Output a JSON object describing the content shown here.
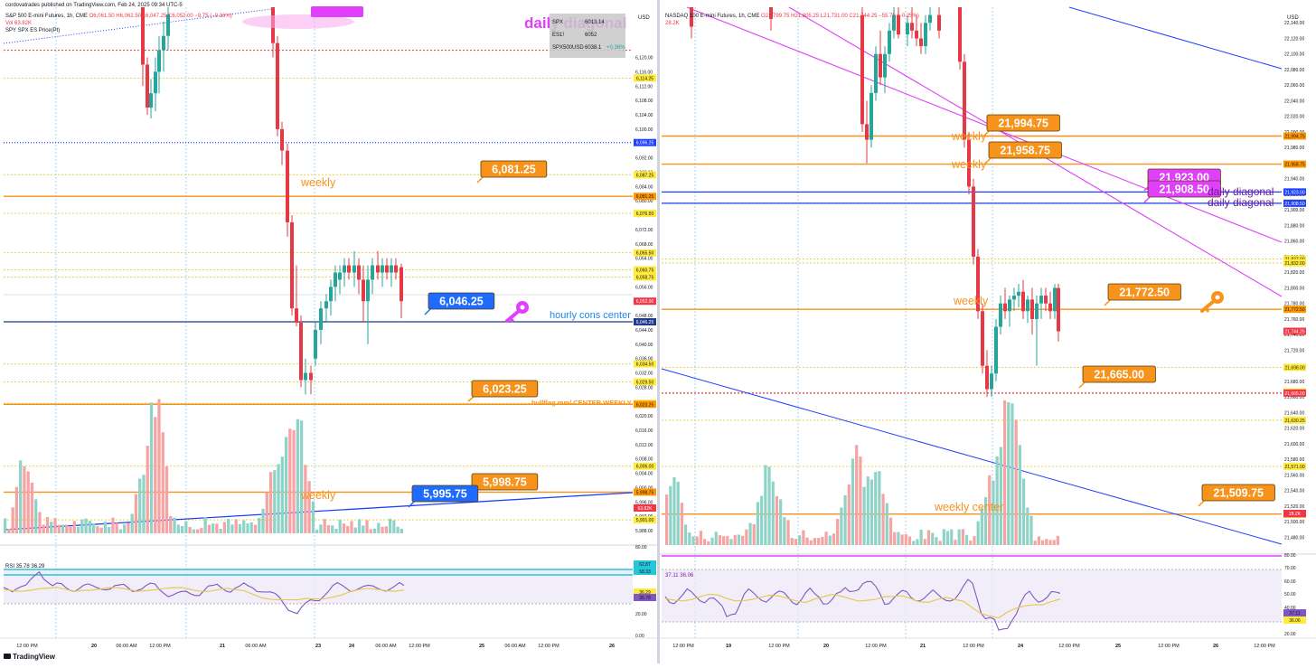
{
  "chart_data": [
    {
      "type": "candlestick",
      "title": "S&P 500 E-mini Futures, 1h, CME",
      "publisher": "cordovatrades published on TradingView.com, Feb 24, 2025 09:34 UTC-5",
      "ohlc_text": "O6,061.50 H6,062.50 L6,047.25 C6,052.00 −9.75 (−0.16%)",
      "vol_text": "Vol 63.82K",
      "overlay_text": "SPY SPX ES Price(Pt)",
      "currency": "USD",
      "table": [
        [
          "SPX",
          "6013.14",
          ""
        ],
        [
          "ES1!",
          "6052",
          ""
        ],
        [
          "SPX500USD",
          "6038.1",
          "+0.36%"
        ]
      ],
      "ylim": [
        5986,
        6134
      ],
      "y_ticks": [
        "6,120.00",
        "6,116.00",
        "6,112.00",
        "6,108.00",
        "6,104.00",
        "6,100.00",
        "6,096.00",
        "6,092.00",
        "6,088.00",
        "6,084.00",
        "6,080.00",
        "6,076.00",
        "6,072.00",
        "6,068.00",
        "6,064.00",
        "6,060.00",
        "6,056.00",
        "6,052.00",
        "6,048.00",
        "6,044.00",
        "6,040.00",
        "6,036.00",
        "6,032.00",
        "6,028.00",
        "6,024.00",
        "6,020.00",
        "6,016.00",
        "6,012.00",
        "6,008.00",
        "6,004.00",
        "6,000.00",
        "5,996.00",
        "5,992.00",
        "5,988.00"
      ],
      "x_ticks": [
        "12:00 PM",
        "20",
        "06:00 AM",
        "12:00 PM",
        "21",
        "06:00 AM",
        "23",
        "24",
        "06:00 AM",
        "12:00 PM",
        "25",
        "06:00 AM",
        "12:00 PM",
        "26"
      ],
      "price_tags": [
        {
          "value": "6,114.25",
          "color": "#ffeb3b"
        },
        {
          "value": "6,096.25",
          "color": "#1e40ff"
        },
        {
          "value": "6,087.25",
          "color": "#ffeb3b"
        },
        {
          "value": "6,081.25",
          "color": "#ff9800"
        },
        {
          "value": "6,076.50",
          "color": "#ffeb3b"
        },
        {
          "value": "6,065.50",
          "color": "#ffeb3b"
        },
        {
          "value": "6,060.75",
          "color": "#ffeb3b"
        },
        {
          "value": "6,058.75",
          "color": "#ffeb3b"
        },
        {
          "value": "6,052.00",
          "color": "#f23645"
        },
        {
          "value": "6,046.25",
          "color": "#1e3a8a"
        },
        {
          "value": "6,034.50",
          "color": "#ffeb3b"
        },
        {
          "value": "6,029.50",
          "color": "#ffeb3b"
        },
        {
          "value": "6,023.50",
          "color": "#ffeb3b"
        },
        {
          "value": "6,023.25",
          "color": "#ff9800"
        },
        {
          "value": "6,006.00",
          "color": "#ffeb3b"
        },
        {
          "value": "5,998.75",
          "color": "#ff9800"
        },
        {
          "value": "5,991.00",
          "color": "#ffeb3b"
        }
      ],
      "callouts": [
        {
          "text": "6,081.25",
          "color": "#f7931a"
        },
        {
          "text": "6,046.25",
          "color": "#1e6bff"
        },
        {
          "text": "6,023.25",
          "color": "#f7931a"
        },
        {
          "text": "5,998.75",
          "color": "#f7931a"
        },
        {
          "text": "5,995.75",
          "color": "#1e6bff"
        }
      ],
      "annotations": [
        "daily diagonal",
        "weekly",
        "weekly",
        "hourly cons center",
        "bullflag mm/ CENTER WEEKLY"
      ],
      "rsi": {
        "label": "RSI 35.78 36.29",
        "ticks": [
          "80.00",
          "20.00",
          "0.00"
        ],
        "tags": [
          "62.87",
          "58.33",
          "36.29",
          "35.78"
        ]
      }
    },
    {
      "type": "candlestick",
      "title": "NASDAQ 100 E-mini Futures, 1h, CME",
      "ohlc_text": "O21,799.75 H21,805.25 L21,731.00 C21,744.25 −55.75 (−0.25%)",
      "vol_text": "28.2K",
      "currency": "USD",
      "ylim": [
        21470,
        22160
      ],
      "y_ticks": [
        "22,140.00",
        "22,120.00",
        "22,100.00",
        "22,080.00",
        "22,060.00",
        "22,040.00",
        "22,020.00",
        "22,000.00",
        "21,980.00",
        "21,960.00",
        "21,940.00",
        "21,920.00",
        "21,900.00",
        "21,880.00",
        "21,860.00",
        "21,840.00",
        "21,820.00",
        "21,800.00",
        "21,780.00",
        "21,760.00",
        "21,740.00",
        "21,720.00",
        "21,700.00",
        "21,680.00",
        "21,660.00",
        "21,640.00",
        "21,620.00",
        "21,600.00",
        "21,580.00",
        "21,560.00",
        "21,540.00",
        "21,520.00",
        "21,500.00",
        "21,480.00"
      ],
      "x_ticks": [
        "12:00 PM",
        "19",
        "12:00 PM",
        "20",
        "12:00 PM",
        "21",
        "12:00 PM",
        "24",
        "12:00 PM",
        "25",
        "12:00 PM",
        "26",
        "12:00 PM"
      ],
      "price_tags": [
        {
          "value": "21,994.75",
          "color": "#ff9800"
        },
        {
          "value": "21,958.75",
          "color": "#ff9800"
        },
        {
          "value": "21,923.00",
          "color": "#1e40ff"
        },
        {
          "value": "21,909.00",
          "color": "#ffeb3b"
        },
        {
          "value": "21,908.50",
          "color": "#1e40ff"
        },
        {
          "value": "21,837.00",
          "color": "#ffeb3b"
        },
        {
          "value": "21,832.00",
          "color": "#ffeb3b"
        },
        {
          "value": "21,772.50",
          "color": "#ff9800"
        },
        {
          "value": "21,744.25",
          "color": "#f23645"
        },
        {
          "value": "21,698.00",
          "color": "#ffeb3b"
        },
        {
          "value": "21,666.50",
          "color": "#ffeb3b"
        },
        {
          "value": "21,665.00",
          "color": "#f23645"
        },
        {
          "value": "21,630.25",
          "color": "#ffeb3b"
        },
        {
          "value": "21,571.00",
          "color": "#ffeb3b"
        },
        {
          "value": "21,509.75",
          "color": "#ff9800"
        },
        {
          "value": "28.2K",
          "color": "#f23645"
        }
      ],
      "callouts": [
        {
          "text": "21,994.75",
          "color": "#f7931a"
        },
        {
          "text": "21,958.75",
          "color": "#f7931a"
        },
        {
          "text": "21,923.00",
          "color": "#e040fb"
        },
        {
          "text": "21,908.50",
          "color": "#e040fb"
        },
        {
          "text": "21,772.50",
          "color": "#f7931a"
        },
        {
          "text": "21,665.00",
          "color": "#f7931a"
        },
        {
          "text": "21,509.75",
          "color": "#f7931a"
        }
      ],
      "annotations": [
        "weekly",
        "weekly",
        "daily diagonal",
        "daily diagonal",
        "weekly",
        "weekly center"
      ],
      "rsi": {
        "label": "37.11 36.06",
        "ticks": [
          "80.00",
          "70.00",
          "60.00",
          "50.00",
          "40.00",
          "30.00",
          "20.00"
        ],
        "tags": [
          "37.11",
          "36.06"
        ]
      }
    }
  ],
  "footer": {
    "brand": "TradingView"
  }
}
